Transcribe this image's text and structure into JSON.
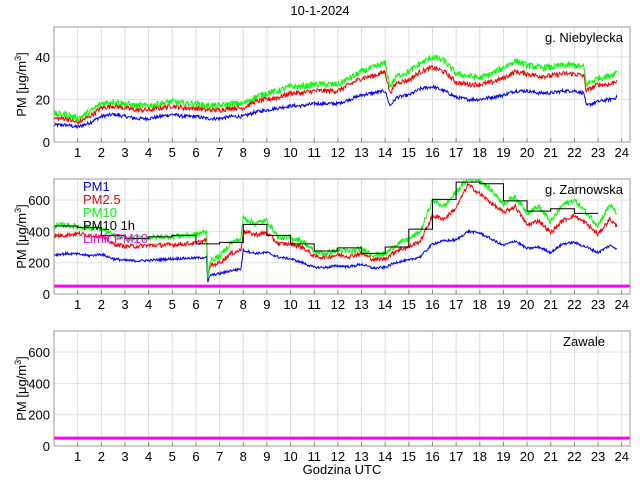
{
  "title": "10-1-2024",
  "xlabel": "Godzina UTC",
  "ylabel_main": "PM [μg/m",
  "ylabel_sup": "3",
  "ylabel_close": "]",
  "colors": {
    "PM1": "#0000ff",
    "PM2.5": "#ff0000",
    "PM10": "#00ff00",
    "PM10 1h": "#000000",
    "Limit PM10": "#ff00ff"
  },
  "legend": [
    "PM1",
    "PM2.5",
    "PM10",
    "PM10 1h",
    "Limit PM10"
  ],
  "chart_data": [
    {
      "type": "line",
      "station": "g. Niebylecka",
      "xlim": [
        0,
        24.35
      ],
      "ylim": [
        0,
        54
      ],
      "yticks": [
        0,
        20,
        40
      ],
      "xticks": [
        1,
        2,
        3,
        4,
        5,
        6,
        7,
        8,
        9,
        10,
        11,
        12,
        13,
        14,
        15,
        16,
        17,
        18,
        19,
        20,
        21,
        22,
        23,
        24
      ],
      "x": [
        0,
        0.5,
        1,
        1.5,
        2,
        2.5,
        3,
        3.5,
        4,
        4.5,
        5,
        5.5,
        6,
        6.5,
        7,
        7.5,
        8,
        8.5,
        9,
        9.5,
        10,
        10.5,
        11,
        11.5,
        12,
        12.5,
        13,
        13.5,
        14,
        14.2,
        14.5,
        15,
        15.5,
        16,
        16.5,
        17,
        17.5,
        18,
        18.5,
        19,
        19.5,
        20,
        20.5,
        21,
        21.5,
        22,
        22.4,
        22.5,
        23,
        23.5,
        23.8
      ],
      "series": [
        {
          "name": "PM1",
          "noise": 0.8,
          "values": [
            8,
            8,
            7,
            9,
            12,
            13,
            12,
            11,
            11,
            12,
            13,
            12,
            12,
            11,
            11,
            12,
            12,
            14,
            15,
            16,
            17,
            17,
            18,
            18,
            18,
            20,
            22,
            23,
            24,
            17,
            21,
            22,
            25,
            26,
            24,
            21,
            20,
            20,
            21,
            22,
            24,
            24,
            23,
            23,
            24,
            24,
            23,
            17,
            19,
            20,
            21
          ]
        },
        {
          "name": "PM2.5",
          "noise": 1.2,
          "values": [
            11,
            11,
            9,
            12,
            16,
            17,
            16,
            15,
            15,
            16,
            17,
            16,
            16,
            15,
            15,
            16,
            16,
            19,
            20,
            21,
            23,
            23,
            24,
            24,
            24,
            27,
            30,
            31,
            33,
            23,
            28,
            29,
            33,
            35,
            33,
            28,
            27,
            27,
            28,
            30,
            33,
            32,
            31,
            31,
            32,
            32,
            31,
            24,
            27,
            27,
            29
          ]
        },
        {
          "name": "PM10",
          "noise": 1.5,
          "values": [
            13,
            13,
            11,
            14,
            18,
            19,
            18,
            17,
            17,
            18,
            19,
            18,
            18,
            17,
            17,
            18,
            18,
            21,
            23,
            24,
            26,
            26,
            27,
            27,
            27,
            30,
            33,
            35,
            37,
            26,
            31,
            33,
            37,
            40,
            38,
            32,
            31,
            30,
            32,
            35,
            38,
            36,
            35,
            35,
            36,
            36,
            35,
            27,
            30,
            31,
            33
          ]
        }
      ],
      "limit": null
    },
    {
      "type": "line",
      "station": "g. Zarnowska",
      "xlim": [
        0,
        24.35
      ],
      "ylim": [
        0,
        735
      ],
      "yticks": [
        0,
        200,
        400,
        600
      ],
      "xticks": [
        1,
        2,
        3,
        4,
        5,
        6,
        7,
        8,
        9,
        10,
        11,
        12,
        13,
        14,
        15,
        16,
        17,
        18,
        19,
        20,
        21,
        22,
        23,
        24
      ],
      "x": [
        0,
        0.5,
        1,
        1.5,
        2,
        2.5,
        3,
        3.5,
        4,
        4.5,
        5,
        5.5,
        6,
        6.45,
        6.5,
        6.6,
        7,
        7.5,
        7.9,
        8,
        8.5,
        9,
        9.5,
        10,
        10.5,
        11,
        11.5,
        12,
        12.5,
        13,
        13.5,
        14,
        14.5,
        15,
        15.5,
        16,
        16.5,
        17,
        17.5,
        18,
        18.5,
        19,
        19.5,
        20,
        20.5,
        21,
        21.5,
        22,
        22.5,
        23,
        23.5,
        23.8
      ],
      "series": [
        {
          "name": "PM1",
          "noise": 8,
          "values": [
            250,
            258,
            255,
            245,
            255,
            225,
            215,
            212,
            215,
            220,
            225,
            228,
            230,
            235,
            70,
            120,
            130,
            150,
            160,
            280,
            260,
            265,
            235,
            225,
            200,
            170,
            170,
            180,
            175,
            190,
            165,
            170,
            205,
            215,
            240,
            320,
            340,
            345,
            400,
            390,
            350,
            310,
            340,
            290,
            300,
            265,
            320,
            330,
            300,
            265,
            310,
            290
          ]
        },
        {
          "name": "PM2.5",
          "noise": 14,
          "values": [
            370,
            378,
            385,
            375,
            370,
            320,
            305,
            305,
            310,
            312,
            315,
            320,
            325,
            345,
            100,
            180,
            200,
            260,
            280,
            400,
            380,
            390,
            320,
            320,
            300,
            240,
            235,
            250,
            240,
            260,
            220,
            225,
            280,
            300,
            340,
            500,
            480,
            550,
            700,
            640,
            580,
            520,
            560,
            440,
            470,
            390,
            470,
            500,
            450,
            380,
            480,
            430
          ]
        },
        {
          "name": "PM10",
          "noise": 18,
          "values": [
            435,
            440,
            430,
            425,
            420,
            375,
            355,
            355,
            360,
            365,
            370,
            375,
            380,
            400,
            110,
            210,
            240,
            330,
            350,
            490,
            450,
            470,
            360,
            360,
            340,
            270,
            260,
            280,
            270,
            290,
            250,
            255,
            320,
            350,
            400,
            600,
            560,
            650,
            735,
            730,
            660,
            580,
            620,
            520,
            560,
            460,
            570,
            600,
            520,
            440,
            570,
            510
          ]
        }
      ],
      "pm10_1h": {
        "name": "PM10 1h",
        "hours": [
          0,
          1,
          2,
          3,
          4,
          5,
          6,
          7,
          8,
          9,
          10,
          11,
          12,
          13,
          14,
          15,
          16,
          17,
          18,
          19,
          20,
          21,
          22
        ],
        "values": [
          435,
          425,
          375,
          355,
          365,
          375,
          320,
          330,
          445,
          375,
          320,
          275,
          295,
          260,
          300,
          415,
          605,
          715,
          705,
          595,
          530,
          545,
          515
        ]
      },
      "limit": {
        "name": "Limit PM10",
        "value": 50
      }
    },
    {
      "type": "line",
      "station": "Zawale",
      "xlim": [
        0,
        24.35
      ],
      "ylim": [
        0,
        735
      ],
      "yticks": [
        0,
        200,
        400,
        600
      ],
      "xticks": [
        1,
        2,
        3,
        4,
        5,
        6,
        7,
        8,
        9,
        10,
        11,
        12,
        13,
        14,
        15,
        16,
        17,
        18,
        19,
        20,
        21,
        22,
        23,
        24
      ],
      "x": [],
      "series": [],
      "limit": {
        "name": "Limit PM10",
        "value": 50
      }
    }
  ]
}
